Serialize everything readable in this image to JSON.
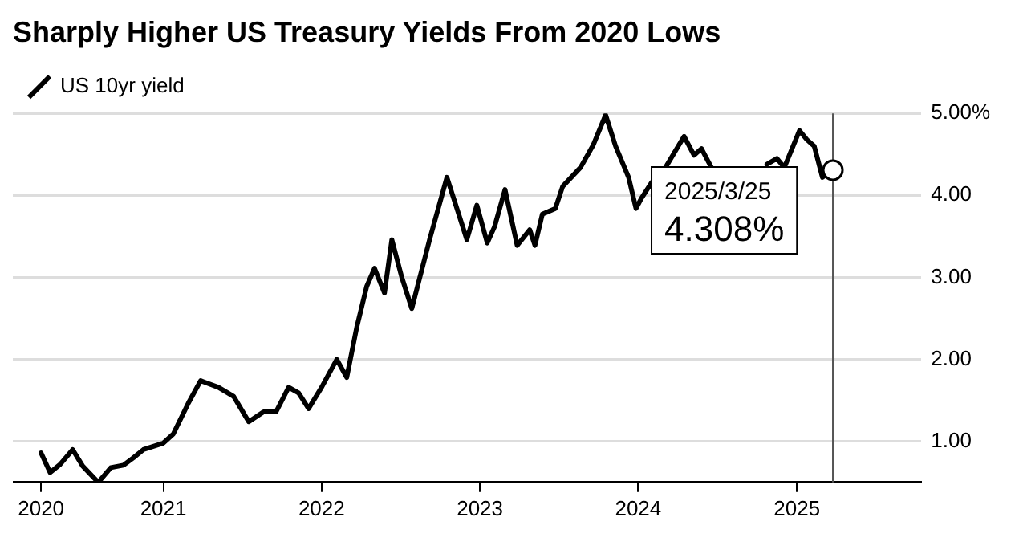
{
  "chart_data": {
    "type": "line",
    "title": "Sharply Higher US Treasury Yields From 2020 Lows",
    "x": [
      "2020-03-25",
      "2020-04-15",
      "2020-05-08",
      "2020-06-06",
      "2020-06-29",
      "2020-08-04",
      "2020-09-02",
      "2020-10-01",
      "2020-10-24",
      "2020-11-16",
      "2021-01-01",
      "2021-01-24",
      "2021-02-28",
      "2021-03-28",
      "2021-05-08",
      "2021-06-12",
      "2021-07-17",
      "2021-08-20",
      "2021-09-18",
      "2021-10-17",
      "2021-11-09",
      "2021-12-02",
      "2022-01-01",
      "2022-02-05",
      "2022-02-28",
      "2022-03-23",
      "2022-04-15",
      "2022-05-03",
      "2022-05-26",
      "2022-06-12",
      "2022-07-05",
      "2022-07-28",
      "2022-09-07",
      "2022-10-17",
      "2022-11-09",
      "2022-12-02",
      "2022-12-25",
      "2023-01-18",
      "2023-02-04",
      "2023-02-28",
      "2023-03-28",
      "2023-04-26",
      "2023-05-08",
      "2023-05-25",
      "2023-06-24",
      "2023-07-11",
      "2023-08-21",
      "2023-09-19",
      "2023-10-18",
      "2023-11-10",
      "2023-12-10",
      "2023-12-27",
      "2024-01-08",
      "2024-01-31",
      "2024-03-04",
      "2024-04-16",
      "2024-05-09",
      "2024-05-26",
      "2024-06-18",
      "2024-08-15",
      "2024-09-20",
      "2024-10-24",
      "2024-11-16",
      "2024-12-03",
      "2025-01-07",
      "2025-01-24",
      "2025-02-10",
      "2025-03-01",
      "2025-03-25"
    ],
    "series": [
      {
        "name": "US 10yr yield",
        "color": "#000000",
        "values": [
          0.86,
          0.62,
          0.72,
          0.9,
          0.7,
          0.5,
          0.68,
          0.71,
          0.8,
          0.9,
          0.98,
          1.09,
          1.47,
          1.74,
          1.66,
          1.55,
          1.24,
          1.36,
          1.36,
          1.66,
          1.59,
          1.4,
          1.66,
          2.0,
          1.78,
          2.39,
          2.89,
          3.11,
          2.81,
          3.46,
          3.0,
          2.62,
          3.46,
          4.22,
          3.84,
          3.46,
          3.88,
          3.42,
          3.62,
          4.07,
          3.39,
          3.58,
          3.39,
          3.77,
          3.84,
          4.11,
          4.34,
          4.61,
          4.98,
          4.6,
          4.22,
          3.84,
          3.96,
          4.15,
          4.34,
          4.72,
          4.49,
          4.57,
          4.34,
          null,
          null,
          4.38,
          4.45,
          4.34,
          4.79,
          4.68,
          4.6,
          4.22,
          4.308
        ]
      }
    ],
    "xlim": [
      "2020-01-20",
      "2025-10-15"
    ],
    "xticks": [
      {
        "value": "2020-03-25",
        "label": "2020"
      },
      {
        "value": "2021-01-01",
        "label": "2021"
      },
      {
        "value": "2022-01-01",
        "label": "2022"
      },
      {
        "value": "2023-01-01",
        "label": "2023"
      },
      {
        "value": "2024-01-01",
        "label": "2024"
      },
      {
        "value": "2025-01-01",
        "label": "2025"
      }
    ],
    "ylim": [
      0.5,
      5
    ],
    "yticks": [
      {
        "value": 1,
        "label": "1.00"
      },
      {
        "value": 2,
        "label": "2.00"
      },
      {
        "value": 3,
        "label": "3.00"
      },
      {
        "value": 4,
        "label": "4.00"
      },
      {
        "value": 5,
        "label": "5.00%"
      }
    ],
    "grid": "y",
    "legend": "top left",
    "marker": "none",
    "line_style": "solid",
    "ref_lines": [
      {
        "axis": "x",
        "value": "2025-03-25",
        "color": "#555555"
      }
    ],
    "annotations": [
      {
        "text": "2025/3/25",
        "x": "2025-03-25",
        "y": 4.308
      },
      {
        "text": "4.308%",
        "x": "2025-03-25",
        "y": 4.308
      }
    ]
  }
}
